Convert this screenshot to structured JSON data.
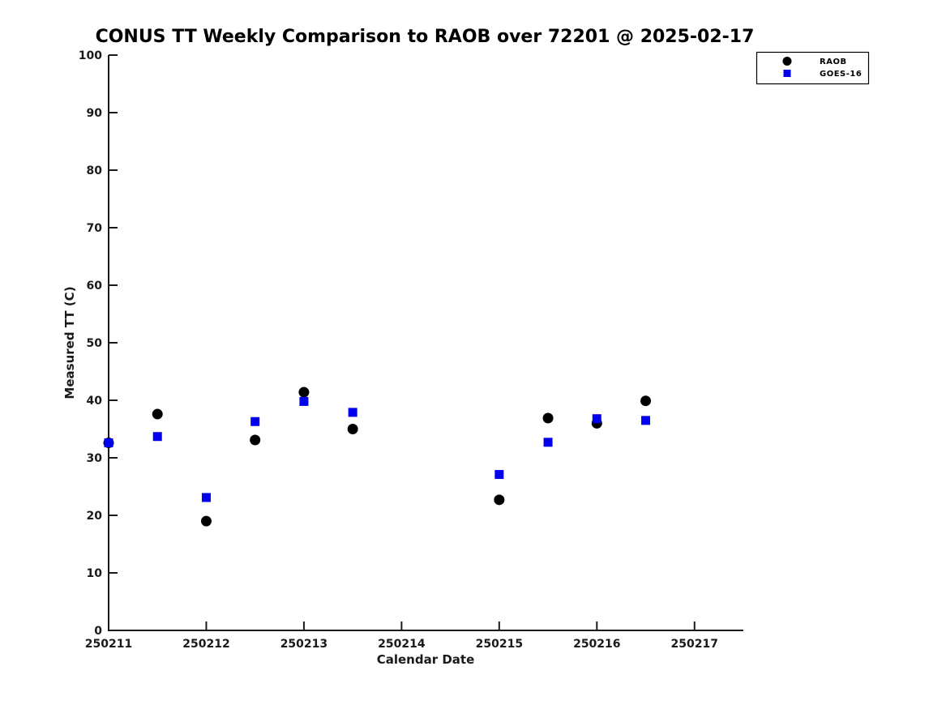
{
  "title": "CONUS TT Weekly Comparison to RAOB over 72201 @ 2025-02-17",
  "colors": {
    "raob": "#000000",
    "goes16": "#0000EE",
    "axis": "#1a1a1a",
    "background": "#ffffff",
    "legend_border": "#000000"
  },
  "legend": {
    "position": "top-right-outside",
    "items": [
      {
        "label": "RAOB",
        "marker": "circle",
        "color": "#000000"
      },
      {
        "label": "GOES-16",
        "marker": "square",
        "color": "#0000EE"
      }
    ]
  },
  "chart_data": {
    "type": "scatter",
    "title": "CONUS TT Weekly Comparison to RAOB over 72201 @ 2025-02-17",
    "xlabel": "Calendar Date",
    "ylabel": "Measured TT (C)",
    "xlim": [
      250211,
      250217.5
    ],
    "ylim": [
      0,
      100
    ],
    "x_ticks": [
      250211,
      250212,
      250213,
      250214,
      250215,
      250216,
      250217
    ],
    "y_ticks": [
      0,
      10,
      20,
      30,
      40,
      50,
      60,
      70,
      80,
      90,
      100
    ],
    "grid": false,
    "legend_position": "top-right-outside",
    "series": [
      {
        "name": "RAOB",
        "marker": "circle",
        "color": "#000000",
        "points": [
          [
            250211.0,
            32.6
          ],
          [
            250211.5,
            37.6
          ],
          [
            250212.0,
            19.0
          ],
          [
            250212.5,
            33.1
          ],
          [
            250213.0,
            41.4
          ],
          [
            250213.5,
            35.0
          ],
          [
            250215.0,
            22.7
          ],
          [
            250215.5,
            36.9
          ],
          [
            250216.0,
            36.0
          ],
          [
            250216.5,
            39.9
          ]
        ]
      },
      {
        "name": "GOES-16",
        "marker": "square",
        "color": "#0000EE",
        "points": [
          [
            250211.0,
            32.6
          ],
          [
            250211.5,
            33.7
          ],
          [
            250212.0,
            23.1
          ],
          [
            250212.5,
            36.3
          ],
          [
            250213.0,
            39.8
          ],
          [
            250213.5,
            37.9
          ],
          [
            250215.0,
            27.1
          ],
          [
            250215.5,
            32.7
          ],
          [
            250216.0,
            36.8
          ],
          [
            250216.5,
            36.5
          ]
        ]
      }
    ]
  }
}
